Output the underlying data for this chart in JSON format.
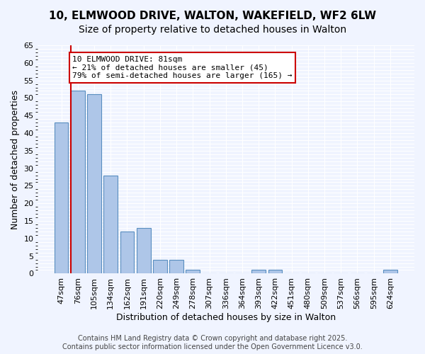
{
  "title_line1": "10, ELMWOOD DRIVE, WALTON, WAKEFIELD, WF2 6LW",
  "title_line2": "Size of property relative to detached houses in Walton",
  "xlabel": "Distribution of detached houses by size in Walton",
  "ylabel": "Number of detached properties",
  "categories": [
    "47sqm",
    "76sqm",
    "105sqm",
    "134sqm",
    "162sqm",
    "191sqm",
    "220sqm",
    "249sqm",
    "278sqm",
    "307sqm",
    "336sqm",
    "364sqm",
    "393sqm",
    "422sqm",
    "451sqm",
    "480sqm",
    "509sqm",
    "537sqm",
    "566sqm",
    "595sqm",
    "624sqm"
  ],
  "values": [
    43,
    52,
    51,
    28,
    12,
    13,
    4,
    4,
    1,
    0,
    0,
    0,
    1,
    1,
    0,
    0,
    0,
    0,
    0,
    0,
    1
  ],
  "bar_color": "#aec6e8",
  "bar_edge_color": "#5a8fc0",
  "red_line_x": 1,
  "annotation_title": "10 ELMWOOD DRIVE: 81sqm",
  "annotation_line2": "← 21% of detached houses are smaller (45)",
  "annotation_line3": "79% of semi-detached houses are larger (165) →",
  "annotation_box_color": "#ffffff",
  "annotation_box_edge": "#cc0000",
  "red_line_color": "#cc0000",
  "ylim": [
    0,
    65
  ],
  "yticks": [
    0,
    5,
    10,
    15,
    20,
    25,
    30,
    35,
    40,
    45,
    50,
    55,
    60,
    65
  ],
  "footer_line1": "Contains HM Land Registry data © Crown copyright and database right 2025.",
  "footer_line2": "Contains public sector information licensed under the Open Government Licence v3.0.",
  "background_color": "#f0f4ff",
  "grid_color": "#ffffff",
  "title_fontsize": 11,
  "subtitle_fontsize": 10,
  "axis_label_fontsize": 9,
  "tick_fontsize": 8,
  "annotation_fontsize": 8,
  "footer_fontsize": 7
}
